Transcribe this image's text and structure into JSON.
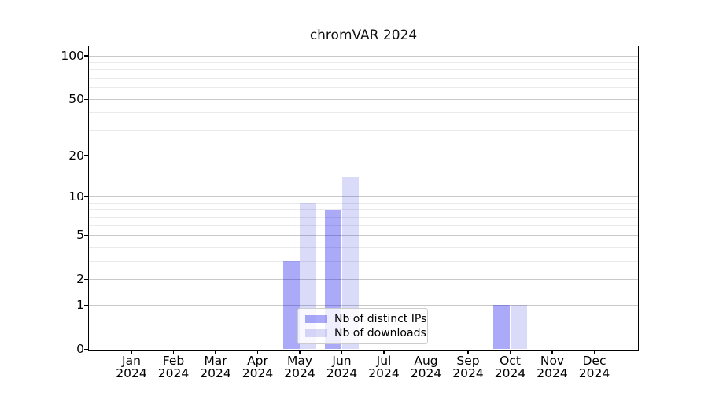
{
  "title": "chromVAR 2024",
  "legend": {
    "items": [
      {
        "label": "Nb of distinct IPs",
        "color": "rgba(9,9,235,0.347)",
        "approx_hex": "#aaaaf8"
      },
      {
        "label": "Nb of downloads",
        "color": "rgba(8,8,215,0.15)",
        "approx_hex": "#dadaf9"
      }
    ]
  },
  "chart_data": {
    "type": "bar",
    "title": "chromVAR 2024",
    "categories": [
      "Jan 2024",
      "Feb 2024",
      "Mar 2024",
      "Apr 2024",
      "May 2024",
      "Jun 2024",
      "Jul 2024",
      "Aug 2024",
      "Sep 2024",
      "Oct 2024",
      "Nov 2024",
      "Dec 2024"
    ],
    "series": [
      {
        "name": "Nb of distinct IPs",
        "values": [
          0,
          0,
          0,
          0,
          3,
          8,
          0,
          0,
          0,
          1,
          0,
          0
        ]
      },
      {
        "name": "Nb of downloads",
        "values": [
          0,
          0,
          0,
          0,
          9,
          14,
          0,
          0,
          0,
          1,
          0,
          0
        ]
      }
    ],
    "xlabel": "",
    "ylabel": "",
    "yscale": "log10(value+1)",
    "yticks": [
      0,
      1,
      2,
      5,
      10,
      20,
      50,
      100
    ],
    "minor_gridlines": [
      3,
      4,
      6,
      7,
      8,
      9,
      30,
      40,
      60,
      70,
      80,
      90
    ],
    "ylim": [
      0,
      117
    ],
    "grid": true,
    "grid_color_major": "#c9c9c9",
    "grid_color_minor": "#eaeaea",
    "legend_position": "lower center, inside plot"
  }
}
